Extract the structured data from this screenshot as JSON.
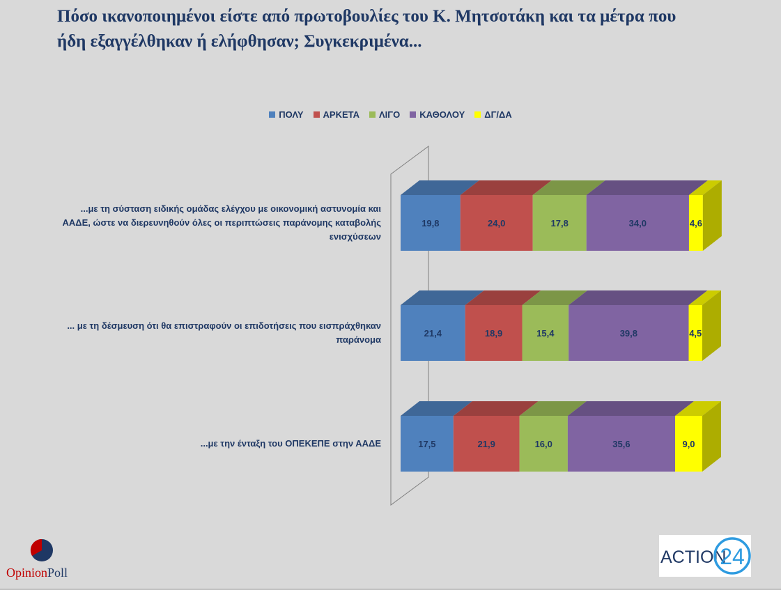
{
  "title_lines": [
    "Πόσο ικανοποιημένοι είστε από πρωτοβουλίες του Κ. Μητσοτάκη και τα μέτρα που",
    "ήδη εξαγγέλθηκαν ή ελήφθησαν; Συγκεκριμένα..."
  ],
  "chart_data": {
    "type": "bar",
    "orientation": "horizontal",
    "stacked": true,
    "percent_stacked": true,
    "categories": [
      "...με τη σύσταση ειδικής ομάδας ελέγχου με οικονομική αστυνομία και ΑΑΔΕ, ώστε να διερευνηθούν όλες οι περιπτώσεις παράνομης καταβολής ενισχύσεων",
      "... με τη δέσμευση ότι θα επιστραφούν οι επιδοτήσεις που εισπράχθηκαν παράνομα",
      "...με την ένταξη του ΟΠΕΚΕΠΕ στην ΑΑΔΕ"
    ],
    "category_lines": [
      [
        "...με τη σύσταση ειδικής ομάδας ελέγχου με οικονομική αστυνομία και",
        "ΑΑΔΕ, ώστε να διερευνηθούν όλες οι περιπτώσεις παράνομης καταβολής",
        "ενισχύσεων"
      ],
      [
        "... με τη δέσμευση ότι θα επιστραφούν οι επιδοτήσεις που εισπράχθηκαν",
        "παράνομα"
      ],
      [
        "...με την ένταξη του ΟΠΕΚΕΠΕ στην ΑΑΔΕ"
      ]
    ],
    "series": [
      {
        "name": "ΠΟΛΥ",
        "color": "#4f81bd",
        "values": [
          19.8,
          21.4,
          17.5
        ],
        "labels": [
          "19,8",
          "21,4",
          "17,5"
        ]
      },
      {
        "name": "ΑΡΚΕΤΑ",
        "color": "#c0504d",
        "values": [
          24.0,
          18.9,
          21.9
        ],
        "labels": [
          "24,0",
          "18,9",
          "21,9"
        ]
      },
      {
        "name": "ΛΙΓΟ",
        "color": "#9bbb59",
        "values": [
          17.8,
          15.4,
          16.0
        ],
        "labels": [
          "17,8",
          "15,4",
          "16,0"
        ]
      },
      {
        "name": "ΚΑΘΟΛΟΥ",
        "color": "#8064a2",
        "values": [
          34.0,
          39.8,
          35.6
        ],
        "labels": [
          "34,0",
          "39,8",
          "35,6"
        ]
      },
      {
        "name": "ΔΓ/ΔΑ",
        "color": "#ffff00",
        "values": [
          4.6,
          4.5,
          9.0
        ],
        "labels": [
          "4,6",
          "4,5",
          "9,0"
        ]
      }
    ],
    "xlim": [
      0,
      100
    ],
    "legend_position": "top-center",
    "grid": false
  },
  "logos": {
    "opinionpoll_opinion": "Opinion",
    "opinionpoll_poll": "Poll",
    "action24": "ACTION",
    "action24_num": "24"
  }
}
